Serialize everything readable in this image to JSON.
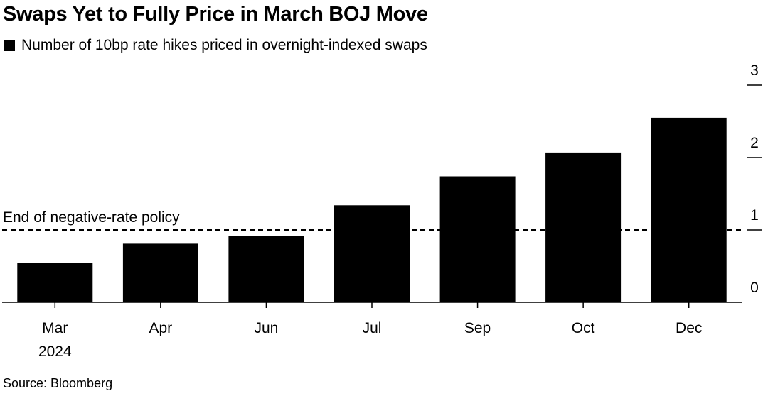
{
  "chart_data": {
    "type": "bar",
    "title": "Swaps Yet to Fully Price in March BOJ Move",
    "legend": [
      {
        "label": "Number of 10bp rate hikes priced in overnight-indexed swaps",
        "color": "#000000"
      }
    ],
    "categories": [
      "Mar",
      "Apr",
      "Jun",
      "Jul",
      "Sep",
      "Oct",
      "Dec"
    ],
    "category_sublabels": [
      "2024",
      "",
      "",
      "",
      "",
      "",
      ""
    ],
    "series": [
      {
        "name": "Number of 10bp rate hikes priced in overnight-indexed swaps",
        "values": [
          0.54,
          0.81,
          0.92,
          1.34,
          1.74,
          2.07,
          2.55
        ],
        "color": "#000000"
      }
    ],
    "ylim": [
      0,
      3
    ],
    "yticks": [
      0,
      1,
      2,
      3
    ],
    "y_axis_side": "right",
    "xlabel": "",
    "ylabel": "",
    "reference_line": {
      "value": 1,
      "label": "End of negative-rate policy",
      "style": "dashed"
    },
    "source": "Source: Bloomberg"
  }
}
